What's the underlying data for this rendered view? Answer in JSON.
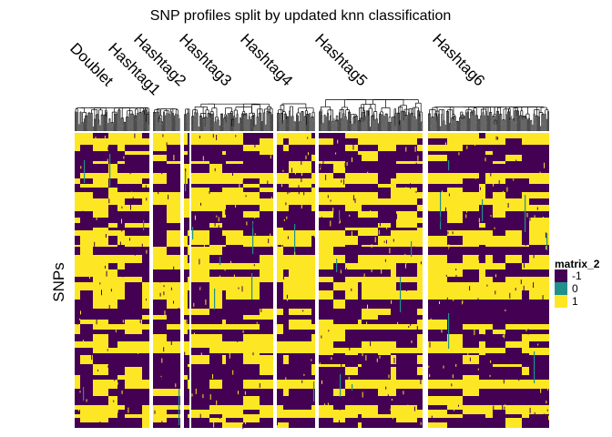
{
  "chart_data": {
    "type": "heatmap",
    "title": "SNP profiles split by updated knn classification",
    "xlabel": "",
    "ylabel": "SNPs",
    "column_groups": [
      "Doublet",
      "Hashtag1",
      "Hashtag2",
      "Hashtag3",
      "Hashtag4",
      "Hashtag5",
      "Hashtag6"
    ],
    "column_dendrogram": true,
    "grid": false,
    "legend": {
      "title": "matrix_2",
      "position": "right",
      "entries": [
        {
          "label": "-1",
          "value": -1,
          "color": "#440154"
        },
        {
          "label": "0",
          "value": 0,
          "color": "#21908C"
        },
        {
          "label": "1",
          "value": 1,
          "color": "#FDE725"
        }
      ]
    },
    "value_range": [
      -1,
      1
    ]
  }
}
